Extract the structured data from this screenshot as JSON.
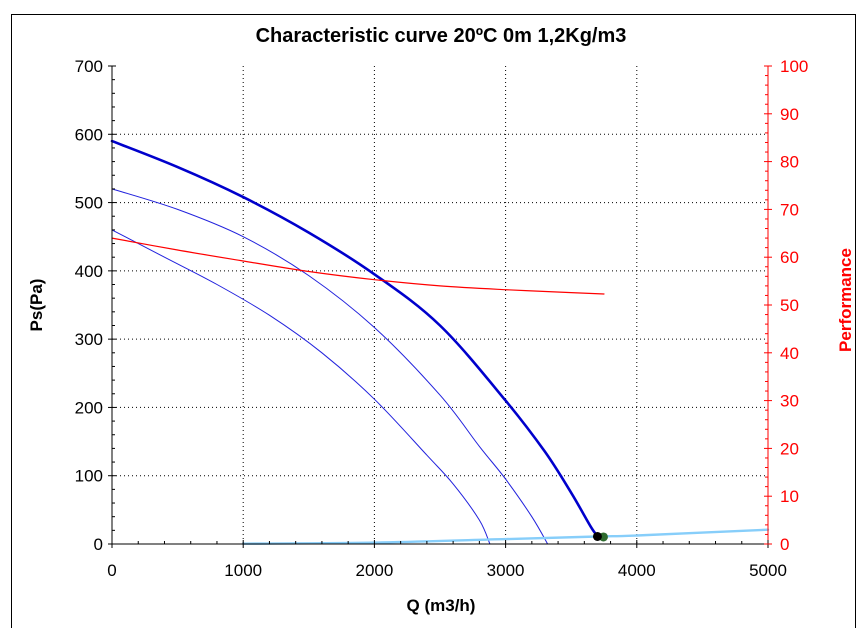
{
  "chart_data": {
    "type": "line",
    "title": "Characteristic curve 20ºC 0m 1,2Kg/m3",
    "xlabel": "Q (m3/h)",
    "ylabel": "Ps(Pa)",
    "y2label": "Performance",
    "xlim": [
      0,
      5000
    ],
    "ylim": [
      0,
      700
    ],
    "y2lim": [
      0,
      100
    ],
    "grid": true,
    "x_ticks": [
      "0",
      "1000",
      "2000",
      "3000",
      "4000",
      "5000"
    ],
    "y_ticks": [
      "0",
      "100",
      "200",
      "300",
      "400",
      "500",
      "600",
      "700"
    ],
    "y2_ticks": [
      "0",
      "10",
      "20",
      "30",
      "40",
      "50",
      "60",
      "70",
      "80",
      "90",
      "100"
    ],
    "colors": {
      "pressure_main": "#0000cc",
      "pressure_thin": "#2222dd",
      "performance": "#ff0000",
      "system": "#87cefa",
      "operating_point": "#000000",
      "operating_point_marker": "#2e6b2e"
    },
    "series": [
      {
        "x": [
          0,
          500,
          1000,
          1500,
          2000,
          2500,
          3000,
          3300,
          3500,
          3650,
          3700
        ],
        "y": [
          590,
          552,
          508,
          456,
          395,
          320,
          210,
          135,
          75,
          25,
          12
        ]
      },
      {
        "x": [
          0,
          500,
          1000,
          1500,
          2000,
          2500,
          2800,
          3000,
          3200,
          3320
        ],
        "y": [
          520,
          490,
          450,
          393,
          317,
          218,
          143,
          95,
          40,
          0
        ]
      },
      {
        "x": [
          0,
          400,
          800,
          1200,
          1600,
          2000,
          2400,
          2600,
          2800,
          2880
        ],
        "y": [
          460,
          420,
          380,
          335,
          280,
          212,
          130,
          88,
          35,
          0
        ]
      },
      {
        "axis": "y2",
        "x": [
          0,
          500,
          1000,
          1500,
          2000,
          2500,
          3000,
          3500,
          3750
        ],
        "y": [
          64,
          61.5,
          59.2,
          57,
          55.3,
          54,
          53.2,
          52.6,
          52.3
        ]
      },
      {
        "x": [
          1000,
          2000,
          3000,
          3700,
          4000,
          5000
        ],
        "y": [
          0.5,
          2,
          7.2,
          11,
          12.5,
          21
        ]
      }
    ],
    "operating_point": {
      "x": 3700,
      "y": 11
    }
  }
}
